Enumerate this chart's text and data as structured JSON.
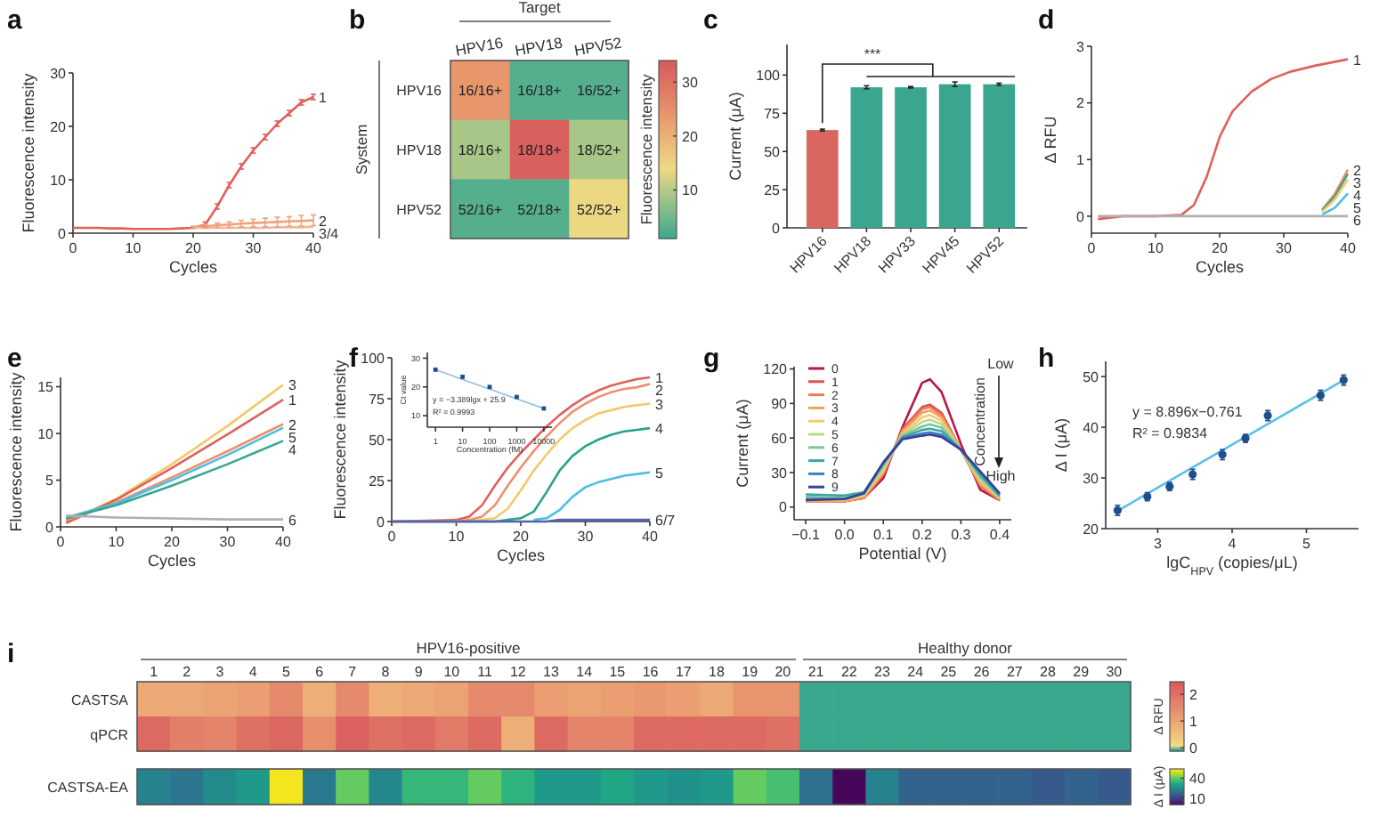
{
  "chart_data": [
    {
      "type": "line",
      "title": "a",
      "xlabel": "Cycles",
      "ylabel": "Fluorescence intensity",
      "x": [
        0,
        2,
        4,
        6,
        8,
        10,
        12,
        14,
        16,
        18,
        20,
        22,
        24,
        26,
        28,
        30,
        32,
        34,
        36,
        38,
        40
      ],
      "xlim": [
        0,
        40
      ],
      "ylim": [
        0,
        30
      ],
      "xticks": [
        0,
        10,
        20,
        30,
        40
      ],
      "yticks": [
        0,
        10,
        20,
        30
      ],
      "series": [
        {
          "name": "1",
          "color": "#e0605a",
          "values": [
            1,
            1,
            1,
            0.9,
            0.9,
            0.8,
            0.8,
            0.8,
            0.8,
            0.9,
            1,
            1.6,
            5,
            9,
            12.5,
            15.5,
            18,
            20.5,
            22.5,
            24.5,
            25.5
          ],
          "errors": [
            null,
            null,
            null,
            null,
            null,
            null,
            null,
            null,
            null,
            null,
            null,
            0.5,
            0.5,
            0.5,
            0.5,
            0.5,
            0.5,
            0.5,
            0.5,
            0.5,
            0.5
          ]
        },
        {
          "name": "2",
          "color": "#f0a07a",
          "values": [
            null,
            null,
            null,
            null,
            null,
            null,
            null,
            null,
            null,
            null,
            1.1,
            1.3,
            1.5,
            1.6,
            1.8,
            1.9,
            2,
            2.1,
            2.2,
            2.3,
            2.4
          ],
          "errors": [
            null,
            null,
            null,
            null,
            null,
            null,
            null,
            null,
            null,
            null,
            0.2,
            0.3,
            0.4,
            0.5,
            0.6,
            0.7,
            0.8,
            0.9,
            0.9,
            1,
            1
          ]
        },
        {
          "name": "3/4",
          "color": "#f3b894",
          "values": [
            null,
            null,
            null,
            null,
            null,
            null,
            null,
            null,
            null,
            null,
            1,
            1,
            1,
            1,
            1,
            1,
            1,
            1.1,
            1.1,
            1.1,
            1.2
          ]
        }
      ]
    },
    {
      "type": "heatmap",
      "title": "b",
      "xlabel": "Target",
      "ylabel": "System",
      "clabel": "Fluorescence intensity",
      "categories": [
        "HPV16",
        "HPV18",
        "HPV52"
      ],
      "y_categories": [
        "HPV16",
        "HPV18",
        "HPV52"
      ],
      "cells": [
        [
          24,
          3,
          3
        ],
        [
          9,
          33,
          9
        ],
        [
          3,
          3,
          14
        ]
      ],
      "cell_labels": [
        [
          "16/16+",
          "16/18+",
          "16/52+"
        ],
        [
          "18/16+",
          "18/18+",
          "18/52+"
        ],
        [
          "52/16+",
          "52/18+",
          "52/52+"
        ]
      ],
      "clim": [
        1,
        34
      ],
      "cticks": [
        10,
        20,
        30
      ]
    },
    {
      "type": "bar",
      "title": "c",
      "ylabel": "Current (μA)",
      "categories": [
        "HPV16",
        "HPV18",
        "HPV33",
        "HPV45",
        "HPV52"
      ],
      "values": [
        64,
        92,
        92,
        94,
        94
      ],
      "errors": [
        0.6,
        1,
        0.5,
        1.5,
        0.7
      ],
      "colors": [
        "#d9665f",
        "#3aa68f",
        "#3aa68f",
        "#3aa68f",
        "#3aa68f"
      ],
      "ylim": [
        0,
        120
      ],
      "yticks": [
        0,
        25,
        50,
        75,
        100
      ],
      "annotations": [
        "***"
      ]
    },
    {
      "type": "line",
      "title": "d",
      "xlabel": "Cycles",
      "ylabel": "Δ RFU",
      "xlim": [
        0,
        40
      ],
      "ylim": [
        -0.3,
        3
      ],
      "xticks": [
        0,
        10,
        20,
        30,
        40
      ],
      "yticks": [
        0,
        1,
        2,
        3
      ],
      "series": [
        {
          "name": "1",
          "color": "#e0605a",
          "x": [
            1,
            5,
            10,
            14,
            16,
            18,
            20,
            22,
            25,
            28,
            31,
            35,
            40
          ],
          "values": [
            -0.05,
            0,
            0,
            0.02,
            0.2,
            0.7,
            1.4,
            1.85,
            2.2,
            2.42,
            2.55,
            2.66,
            2.77
          ]
        },
        {
          "name": "2",
          "color": "#ef8f6e",
          "x": [
            36,
            38,
            40
          ],
          "values": [
            0.12,
            0.4,
            0.82
          ]
        },
        {
          "name": "3",
          "color": "#3aa68f",
          "x": [
            36,
            38,
            40
          ],
          "values": [
            0.1,
            0.35,
            0.75
          ]
        },
        {
          "name": "4",
          "color": "#f2c96a",
          "x": [
            36,
            38,
            40
          ],
          "values": [
            0.08,
            0.3,
            0.65
          ]
        },
        {
          "name": "5",
          "color": "#4fbde6",
          "x": [
            36,
            38,
            40
          ],
          "values": [
            0.03,
            0.15,
            0.4
          ]
        },
        {
          "name": "6",
          "color": "#b0b0b0",
          "x": [
            1,
            30,
            34,
            36,
            38,
            40
          ],
          "values": [
            0,
            0,
            0,
            0,
            0,
            0
          ]
        }
      ]
    },
    {
      "type": "line",
      "title": "e",
      "xlabel": "Cycles",
      "ylabel": "Fluorescence intensity",
      "x": [
        1,
        10,
        20,
        30,
        40
      ],
      "xlim": [
        0,
        40
      ],
      "ylim": [
        0,
        16
      ],
      "xticks": [
        0,
        10,
        20,
        30,
        40
      ],
      "yticks": [
        0,
        5,
        10,
        15
      ],
      "series": [
        {
          "name": "3",
          "color": "#f2c96a",
          "values": [
            0.5,
            3,
            6.7,
            10.8,
            15.2
          ]
        },
        {
          "name": "1",
          "color": "#e0605a",
          "values": [
            0.4,
            2.9,
            6.3,
            9.9,
            13.6
          ]
        },
        {
          "name": "2",
          "color": "#ef8f6e",
          "values": [
            0.7,
            2.6,
            5.3,
            8.1,
            11
          ]
        },
        {
          "name": "5",
          "color": "#4fbde6",
          "values": [
            1,
            2.5,
            5,
            7.7,
            10.6
          ]
        },
        {
          "name": "4",
          "color": "#3aa68f",
          "values": [
            0.9,
            2.3,
            4.4,
            6.7,
            9.2
          ]
        },
        {
          "name": "6",
          "color": "#b0b0b0",
          "values": [
            1.2,
            1,
            0.9,
            0.8,
            0.8
          ]
        }
      ]
    },
    {
      "type": "line",
      "title": "f",
      "xlabel": "Cycles",
      "ylabel": "Fluorescence intensity",
      "x": [
        0,
        10,
        12,
        14,
        16,
        18,
        20,
        22,
        24,
        26,
        28,
        30,
        32,
        34,
        36,
        38,
        40
      ],
      "xlim": [
        0,
        40
      ],
      "ylim": [
        0,
        100
      ],
      "xticks": [
        0,
        10,
        20,
        30,
        40
      ],
      "yticks": [
        0,
        25,
        50,
        75,
        100
      ],
      "series": [
        {
          "name": "1",
          "color": "#e0605a",
          "values": [
            0,
            1,
            3,
            10,
            22,
            33,
            42,
            50,
            58,
            65,
            71,
            76,
            80,
            83,
            85,
            87,
            88
          ]
        },
        {
          "name": "2",
          "color": "#ef8f6e",
          "values": [
            0,
            0,
            1,
            3,
            10,
            22,
            33,
            43,
            52,
            60,
            67,
            72,
            76,
            79,
            81,
            82,
            84
          ]
        },
        {
          "name": "3",
          "color": "#f5c86a",
          "values": [
            0,
            0,
            0,
            1,
            2,
            8,
            19,
            31,
            41,
            50,
            57,
            62,
            66,
            68,
            70,
            71,
            72
          ]
        },
        {
          "name": "4",
          "color": "#2aa38a",
          "values": [
            0,
            0,
            0,
            0,
            0,
            1,
            2,
            6,
            18,
            31,
            40,
            46,
            50,
            53,
            55,
            56,
            57
          ]
        },
        {
          "name": "5",
          "color": "#4fbde6",
          "values": [
            null,
            null,
            null,
            null,
            null,
            null,
            null,
            1,
            2,
            7,
            15,
            21,
            24,
            26,
            28,
            29,
            30
          ]
        },
        {
          "name": "6/7",
          "color": "#5560b0",
          "values": [
            0,
            0,
            0,
            0,
            0,
            0,
            0,
            0,
            0,
            1,
            1,
            1,
            1,
            1,
            1,
            1,
            1
          ]
        }
      ]
    },
    {
      "type": "scatter",
      "xlabel": "Concentration (fM)",
      "ylabel": "Ct value",
      "log": "x",
      "xlim": [
        0.5,
        20000
      ],
      "ylim": [
        6,
        32
      ],
      "xticks": [
        1,
        10,
        100,
        1000,
        10000
      ],
      "yticks": [
        10,
        20,
        30
      ],
      "annotations": [
        "y = −3.389lgx + 25.9",
        "R² = 0.9993"
      ],
      "series": [
        {
          "color": "#1f4e8c",
          "marker": "square",
          "x": [
            1,
            10,
            100,
            1000,
            10000
          ],
          "values": [
            26,
            23.5,
            20,
            16.5,
            12.5
          ]
        },
        {
          "type": "line",
          "color": "#8ab8e0",
          "x": [
            1,
            10000
          ],
          "values": [
            26,
            12.5
          ]
        }
      ]
    },
    {
      "type": "line",
      "title": "g",
      "xlabel": "Potential (V)",
      "ylabel": "Current (μA)",
      "legend": "top left",
      "x": [
        -0.1,
        0,
        0.05,
        0.1,
        0.15,
        0.2,
        0.22,
        0.25,
        0.3,
        0.35,
        0.4
      ],
      "xlim": [
        -0.13,
        0.43
      ],
      "ylim": [
        -11,
        122
      ],
      "xticks": [
        {
          "value": -0.1,
          "label": "−0.1"
        },
        {
          "value": 0,
          "label": "0.0"
        },
        0.1,
        0.2,
        0.3,
        0.4
      ],
      "yticks": [
        0,
        30,
        60,
        90,
        120
      ],
      "annotations": [
        "Low",
        "Concentration",
        "High"
      ],
      "series": [
        {
          "name": "0",
          "color": "#b5194a",
          "values": [
            5,
            5,
            8,
            25,
            70,
            108,
            111,
            100,
            55,
            15,
            6
          ]
        },
        {
          "name": "1",
          "color": "#d9534f",
          "values": [
            5,
            5,
            8,
            28,
            68,
            87,
            89,
            82,
            50,
            18,
            6
          ]
        },
        {
          "name": "2",
          "color": "#ee7a5a",
          "values": [
            5,
            5,
            8,
            29,
            67,
            85,
            87,
            80,
            50,
            19,
            6
          ]
        },
        {
          "name": "3",
          "color": "#f5a15e",
          "values": [
            5,
            5,
            9,
            30,
            66,
            82,
            84,
            78,
            50,
            20,
            7
          ]
        },
        {
          "name": "4",
          "color": "#f5c96e",
          "values": [
            6,
            6,
            10,
            32,
            64,
            78,
            80,
            75,
            50,
            22,
            8
          ]
        },
        {
          "name": "5",
          "color": "#b8d98a",
          "values": [
            7,
            7,
            11,
            34,
            63,
            74,
            76,
            72,
            50,
            24,
            8
          ]
        },
        {
          "name": "6",
          "color": "#7ec4a0",
          "values": [
            9,
            8,
            12,
            36,
            62,
            70,
            72,
            69,
            50,
            26,
            9
          ]
        },
        {
          "name": "7",
          "color": "#3aa79a",
          "values": [
            11,
            10,
            13,
            38,
            61,
            67,
            68,
            66,
            50,
            28,
            10
          ]
        },
        {
          "name": "8",
          "color": "#3b7fbf",
          "values": [
            7,
            7,
            12,
            38,
            60,
            64,
            65,
            63,
            50,
            30,
            11
          ]
        },
        {
          "name": "9",
          "color": "#3a3f9a",
          "values": [
            6,
            7,
            12,
            39,
            59,
            62,
            63,
            61,
            50,
            31,
            12
          ]
        }
      ]
    },
    {
      "type": "scatter",
      "title": "h",
      "xlabel": "lgC$_{HPV}$ (copies/μL)",
      "ylabel": "Δ I (μA)",
      "xlim": [
        2.3,
        5.7
      ],
      "ylim": [
        20,
        53
      ],
      "xticks": [
        3,
        4,
        5
      ],
      "yticks": [
        20,
        30,
        40,
        50
      ],
      "annotations": [
        "y = 8.896x−0.761",
        "R² = 0.9834"
      ],
      "series": [
        {
          "color": "#1f4e8c",
          "marker": "circle",
          "x": [
            2.46,
            2.86,
            3.16,
            3.47,
            3.87,
            4.18,
            4.48,
            5.19,
            5.5
          ],
          "values": [
            23.6,
            26.3,
            28.3,
            30.7,
            34.6,
            37.8,
            42.3,
            46.3,
            49.3
          ],
          "errors": [
            1,
            0.8,
            0.8,
            1,
            1,
            0.8,
            1,
            1,
            1
          ]
        },
        {
          "type": "line",
          "color": "#5bc0e8",
          "x": [
            2.46,
            5.5
          ],
          "values": [
            23.5,
            49.3
          ]
        }
      ]
    },
    {
      "type": "heatmap",
      "title": "i",
      "categories": [
        "1",
        "2",
        "3",
        "4",
        "5",
        "6",
        "7",
        "8",
        "9",
        "10",
        "11",
        "12",
        "13",
        "14",
        "15",
        "16",
        "17",
        "18",
        "19",
        "20",
        "21",
        "22",
        "23",
        "24",
        "25",
        "26",
        "27",
        "28",
        "29",
        "30"
      ],
      "y_categories": [
        "CASTSA",
        "qPCR"
      ],
      "clim": [
        -0.13,
        2.47
      ],
      "cticks": [
        0,
        1,
        2
      ],
      "clabel": "Δ RFU",
      "annotations": [
        "HPV16-positive",
        "Healthy donor"
      ],
      "cells": [
        [
          0.9,
          0.9,
          1,
          1.1,
          1.5,
          0.8,
          1.5,
          0.8,
          0.9,
          1,
          1.5,
          1.5,
          1.1,
          1,
          1.1,
          1.2,
          1.1,
          0.9,
          1.3,
          1.3,
          -0.1,
          -0.08,
          -0.1,
          -0.1,
          -0.1,
          -0.1,
          -0.1,
          -0.1,
          -0.08,
          -0.1
        ],
        [
          2.1,
          1.7,
          1.6,
          2,
          2.2,
          1.4,
          2.3,
          2,
          2.1,
          1.8,
          2.1,
          0.8,
          2.1,
          1.6,
          1.6,
          2.1,
          2.1,
          2.1,
          2.1,
          2,
          -0.1,
          -0.1,
          -0.1,
          -0.1,
          -0.08,
          -0.1,
          -0.1,
          -0.1,
          -0.1,
          -0.1
        ]
      ]
    },
    {
      "type": "heatmap",
      "categories": [
        null,
        null,
        null,
        null,
        null,
        null,
        null,
        null,
        null,
        null,
        null,
        null,
        null,
        null,
        null,
        null,
        null,
        null,
        null,
        null,
        null,
        null,
        null,
        null,
        null,
        null,
        null,
        null,
        null,
        null
      ],
      "y_categories": [
        "CASTSA-EA"
      ],
      "clim": [
        0,
        54
      ],
      "cticks": [
        10,
        40
      ],
      "clabel": "Δ I (μA)",
      "cells": [
        [
          24,
          21,
          26,
          29,
          53,
          22,
          41,
          25,
          36,
          36,
          41,
          35,
          29,
          29,
          32,
          29,
          27,
          29,
          41,
          38,
          20,
          1,
          24,
          17,
          17,
          17,
          17,
          15,
          17,
          15
        ]
      ]
    }
  ]
}
